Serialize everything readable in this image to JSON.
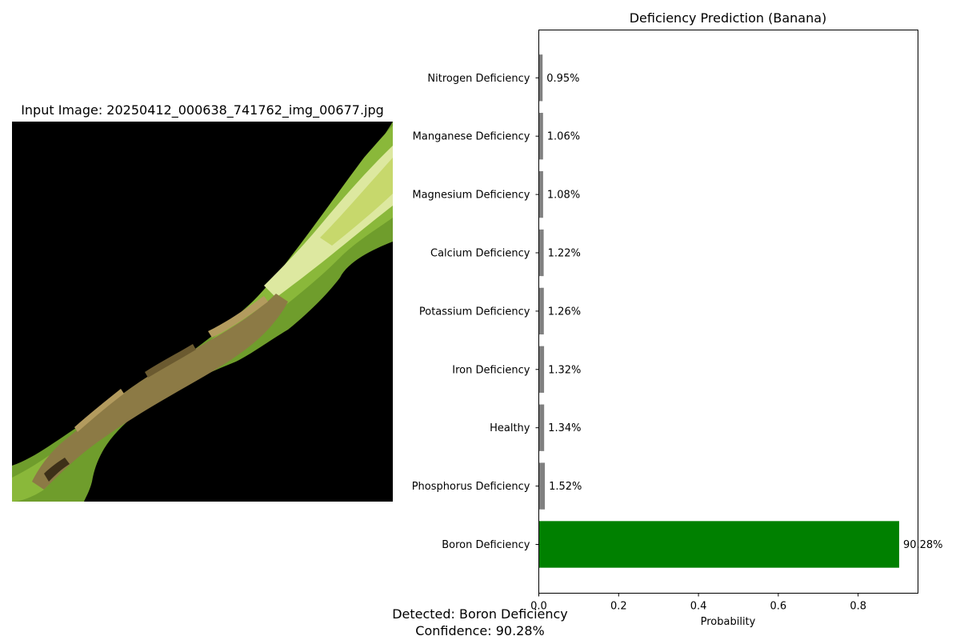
{
  "image_panel": {
    "title": "Input Image: 20250412_000638_741762_img_00677.jpg"
  },
  "result": {
    "detected": "Detected: Boron Deficiency",
    "confidence": "Confidence: 90.28%"
  },
  "colors": {
    "top_bar": "#008000",
    "other_bars": "#808080",
    "image_background": "#000000"
  },
  "chart_data": {
    "type": "bar",
    "orientation": "horizontal",
    "title": "Deficiency Prediction (Banana)",
    "xlabel": "Probability",
    "ylabel": "",
    "xlim": [
      0,
      0.95
    ],
    "xticks": [
      "0.0",
      "0.2",
      "0.4",
      "0.6",
      "0.8"
    ],
    "categories": [
      "Boron Deficiency",
      "Phosphorus Deficiency",
      "Healthy",
      "Iron Deficiency",
      "Potassium Deficiency",
      "Calcium Deficiency",
      "Magnesium Deficiency",
      "Manganese Deficiency",
      "Nitrogen Deficiency"
    ],
    "values": [
      0.9028,
      0.0152,
      0.0134,
      0.0132,
      0.0126,
      0.0122,
      0.0108,
      0.0106,
      0.0095
    ],
    "labels": [
      "90.28%",
      "1.52%",
      "1.34%",
      "1.32%",
      "1.26%",
      "1.22%",
      "1.08%",
      "1.06%",
      "0.95%"
    ],
    "grid": false,
    "legend": "none"
  }
}
